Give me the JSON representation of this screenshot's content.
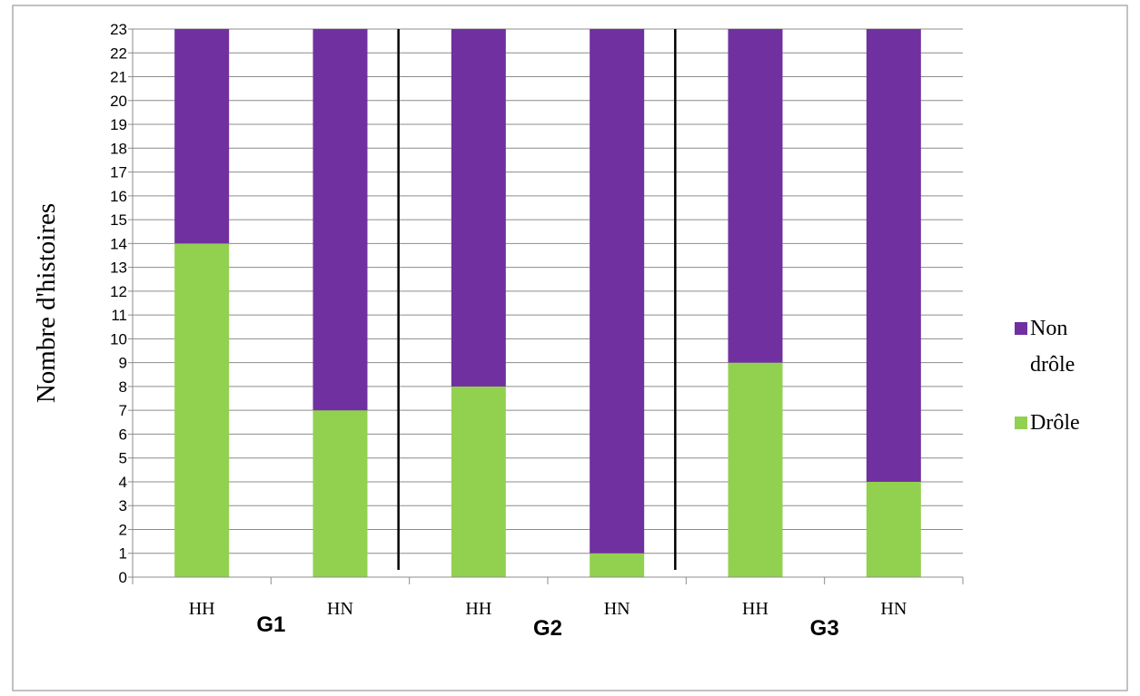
{
  "chart_data": {
    "type": "bar",
    "stacked": true,
    "categories": [
      "HH",
      "HN",
      "HH",
      "HN",
      "HH",
      "HN"
    ],
    "groups": [
      {
        "label": "G1",
        "categories": [
          0,
          1
        ]
      },
      {
        "label": "G2",
        "categories": [
          2,
          3
        ]
      },
      {
        "label": "G3",
        "categories": [
          4,
          5
        ]
      }
    ],
    "series": [
      {
        "name": "Drôle",
        "values": [
          14,
          7,
          8,
          1,
          9,
          4
        ],
        "color": "#92D050"
      },
      {
        "name": "Non drôle",
        "values": [
          9,
          16,
          15,
          22,
          14,
          19
        ],
        "color": "#7030A0"
      }
    ],
    "legend_entries": [
      {
        "lines": [
          "Non",
          "drôle"
        ],
        "color": "#7030A0"
      },
      {
        "lines": [
          "Drôle"
        ],
        "color": "#92D050"
      }
    ],
    "ylabel": "Nombre d'histoires",
    "ylim": [
      0,
      23
    ],
    "ytick_step": 1,
    "grid": true,
    "legend_position": "right"
  }
}
